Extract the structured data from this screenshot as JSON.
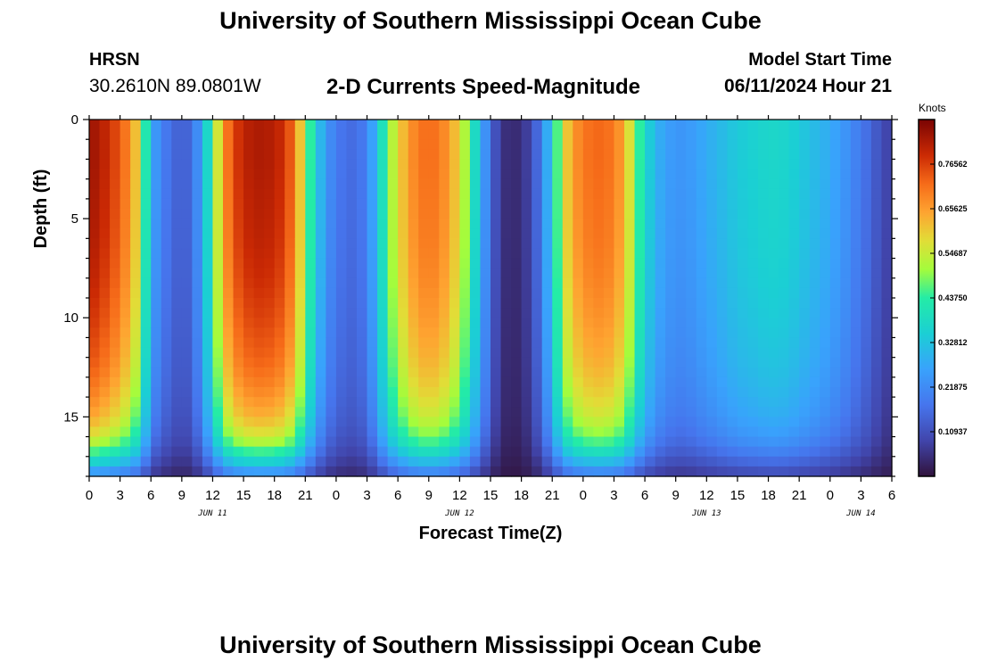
{
  "page": {
    "title_top": "University of Southern Mississippi Ocean Cube",
    "title_bottom": "University of Southern Mississippi Ocean Cube",
    "station": "HRSN",
    "coordinates": "30.2610N  89.0801W",
    "subtitle": "2-D Currents Speed-Magnitude",
    "model_start_label": "Model Start Time",
    "model_start_value": "06/11/2024 Hour 21"
  },
  "chart_data": {
    "type": "heatmap",
    "title": "2-D Currents Speed-Magnitude",
    "xlabel": "Forecast Time(Z)",
    "ylabel": "Depth (ft)",
    "colorbar_label": "Knots",
    "colorbar_range": [
      0.0,
      0.875
    ],
    "colorbar_ticks": [
      "0.76562",
      "0.65625",
      "0.54687",
      "0.43750",
      "0.32812",
      "0.21875",
      "0.10937"
    ],
    "colorbar_tick_values": [
      0.76562,
      0.65625,
      0.54687,
      0.4375,
      0.32812,
      0.21875,
      0.10937
    ],
    "xlim_hours": [
      0,
      78
    ],
    "ylim_ft": [
      0,
      18
    ],
    "x_ticks": [
      {
        "h": 0,
        "label": "0"
      },
      {
        "h": 3,
        "label": "3"
      },
      {
        "h": 6,
        "label": "6"
      },
      {
        "h": 9,
        "label": "9"
      },
      {
        "h": 12,
        "label": "12"
      },
      {
        "h": 15,
        "label": "15"
      },
      {
        "h": 18,
        "label": "18"
      },
      {
        "h": 21,
        "label": "21"
      },
      {
        "h": 24,
        "label": "0"
      },
      {
        "h": 27,
        "label": "3"
      },
      {
        "h": 30,
        "label": "6"
      },
      {
        "h": 33,
        "label": "9"
      },
      {
        "h": 36,
        "label": "12"
      },
      {
        "h": 39,
        "label": "15"
      },
      {
        "h": 42,
        "label": "18"
      },
      {
        "h": 45,
        "label": "21"
      },
      {
        "h": 48,
        "label": "0"
      },
      {
        "h": 51,
        "label": "3"
      },
      {
        "h": 54,
        "label": "6"
      },
      {
        "h": 57,
        "label": "9"
      },
      {
        "h": 60,
        "label": "12"
      },
      {
        "h": 63,
        "label": "15"
      },
      {
        "h": 66,
        "label": "18"
      },
      {
        "h": 69,
        "label": "21"
      },
      {
        "h": 72,
        "label": "0"
      },
      {
        "h": 75,
        "label": "3"
      },
      {
        "h": 78,
        "label": "6"
      }
    ],
    "date_labels": [
      {
        "h": 12,
        "label": "JUN 11"
      },
      {
        "h": 36,
        "label": "JUN 12"
      },
      {
        "h": 60,
        "label": "JUN 13"
      },
      {
        "h": 75,
        "label": "JUN 14"
      }
    ],
    "y_ticks": [
      {
        "ft": 0,
        "label": "0"
      },
      {
        "ft": 5,
        "label": "5"
      },
      {
        "ft": 10,
        "label": "10"
      },
      {
        "ft": 15,
        "label": "15"
      }
    ],
    "speed_profile": {
      "hours": [
        0,
        1,
        2,
        3,
        4,
        5,
        5.5,
        6,
        7,
        8,
        9,
        10,
        11,
        12,
        13,
        14,
        15,
        16,
        17,
        18,
        19,
        20,
        21,
        22,
        23,
        24,
        25,
        26,
        27,
        28,
        29,
        30,
        31,
        32,
        33,
        34,
        35,
        36,
        37,
        38,
        39,
        40,
        41,
        42,
        43,
        44,
        45,
        46,
        47,
        48,
        49,
        50,
        51,
        52,
        53,
        54,
        55,
        56,
        57,
        58,
        59,
        60,
        61,
        62,
        63,
        64,
        65,
        66,
        67,
        68,
        69,
        70,
        71,
        72,
        73,
        74,
        75,
        76,
        77,
        78
      ],
      "knots": [
        0.84,
        0.82,
        0.78,
        0.74,
        0.67,
        0.56,
        0.42,
        0.28,
        0.2,
        0.16,
        0.13,
        0.16,
        0.28,
        0.46,
        0.66,
        0.76,
        0.8,
        0.82,
        0.82,
        0.81,
        0.78,
        0.7,
        0.52,
        0.36,
        0.24,
        0.19,
        0.16,
        0.16,
        0.2,
        0.32,
        0.48,
        0.58,
        0.66,
        0.7,
        0.72,
        0.7,
        0.66,
        0.58,
        0.46,
        0.3,
        0.16,
        0.06,
        0.04,
        0.05,
        0.1,
        0.2,
        0.36,
        0.56,
        0.66,
        0.7,
        0.72,
        0.72,
        0.7,
        0.64,
        0.5,
        0.38,
        0.3,
        0.26,
        0.24,
        0.24,
        0.26,
        0.28,
        0.3,
        0.32,
        0.34,
        0.35,
        0.36,
        0.37,
        0.37,
        0.36,
        0.34,
        0.32,
        0.3,
        0.28,
        0.25,
        0.22,
        0.18,
        0.15,
        0.1,
        0.08
      ]
    },
    "depth_profile": {
      "depths_ft": [
        0,
        2,
        4,
        6,
        8,
        10,
        12,
        13,
        14,
        15,
        16,
        16.5,
        17,
        17.5,
        18
      ],
      "factor": [
        1.0,
        1.0,
        0.99,
        0.98,
        0.96,
        0.93,
        0.89,
        0.86,
        0.82,
        0.77,
        0.68,
        0.6,
        0.5,
        0.38,
        0.25
      ]
    }
  }
}
